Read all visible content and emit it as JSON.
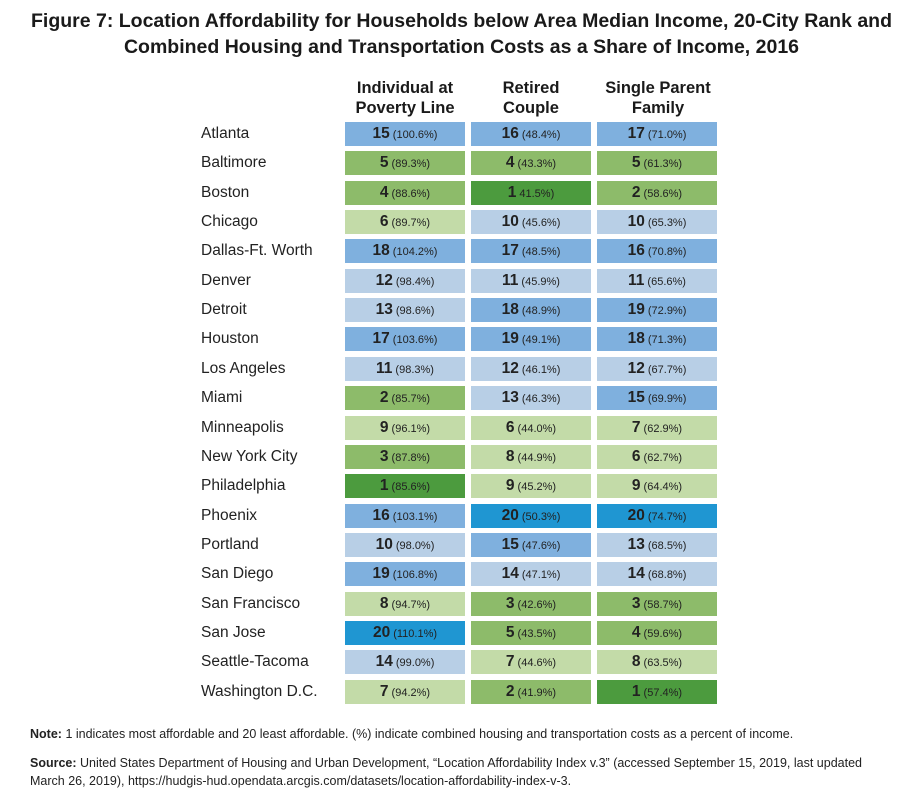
{
  "title_line1": "Figure 7: Location Affordability for Households below Area Median Income, 20-City Rank and",
  "title_line2": "Combined Housing and Transportation Costs as a Share of Income, 2016",
  "colors": {
    "shade_1": "#4c9b3e",
    "shade_2": "#8dbb6a",
    "shade_3": "#c3dba8",
    "shade_4": "#b8cfe6",
    "shade_5": "#7fb0de",
    "shade_6": "#1f96d2"
  },
  "chart_data": {
    "type": "table",
    "columns": [
      {
        "line1": "Individual at",
        "line2": "Poverty Line"
      },
      {
        "line1": "Retired",
        "line2": "Couple"
      },
      {
        "line1": "Single Parent",
        "line2": "Family"
      }
    ],
    "rows": [
      {
        "city": "Atlanta",
        "cells": [
          {
            "rank": "15",
            "pct": "(100.6%)"
          },
          {
            "rank": "16",
            "pct": "(48.4%)"
          },
          {
            "rank": "17",
            "pct": "(71.0%)"
          }
        ]
      },
      {
        "city": "Baltimore",
        "cells": [
          {
            "rank": "5",
            "pct": "(89.3%)"
          },
          {
            "rank": "4",
            "pct": "(43.3%)"
          },
          {
            "rank": "5",
            "pct": "(61.3%)"
          }
        ]
      },
      {
        "city": "Boston",
        "cells": [
          {
            "rank": "4",
            "pct": "(88.6%)"
          },
          {
            "rank": "1",
            "pct": "41.5%)"
          },
          {
            "rank": "2",
            "pct": "(58.6%)"
          }
        ]
      },
      {
        "city": "Chicago",
        "cells": [
          {
            "rank": "6",
            "pct": "(89.7%)"
          },
          {
            "rank": "10",
            "pct": "(45.6%)"
          },
          {
            "rank": "10",
            "pct": "(65.3%)"
          }
        ]
      },
      {
        "city": "Dallas-Ft. Worth",
        "cells": [
          {
            "rank": "18",
            "pct": "(104.2%)"
          },
          {
            "rank": "17",
            "pct": "(48.5%)"
          },
          {
            "rank": "16",
            "pct": "(70.8%)"
          }
        ]
      },
      {
        "city": "Denver",
        "cells": [
          {
            "rank": "12",
            "pct": "(98.4%)"
          },
          {
            "rank": "11",
            "pct": "(45.9%)"
          },
          {
            "rank": "11",
            "pct": "(65.6%)"
          }
        ]
      },
      {
        "city": "Detroit",
        "cells": [
          {
            "rank": "13",
            "pct": "(98.6%)"
          },
          {
            "rank": "18",
            "pct": "(48.9%)"
          },
          {
            "rank": "19",
            "pct": "(72.9%)"
          }
        ]
      },
      {
        "city": "Houston",
        "cells": [
          {
            "rank": "17",
            "pct": "(103.6%)"
          },
          {
            "rank": "19",
            "pct": "(49.1%)"
          },
          {
            "rank": "18",
            "pct": "(71.3%)"
          }
        ]
      },
      {
        "city": "Los Angeles",
        "cells": [
          {
            "rank": "11",
            "pct": "(98.3%)"
          },
          {
            "rank": "12",
            "pct": "(46.1%)"
          },
          {
            "rank": "12",
            "pct": "(67.7%)"
          }
        ]
      },
      {
        "city": "Miami",
        "cells": [
          {
            "rank": "2",
            "pct": "(85.7%)"
          },
          {
            "rank": "13",
            "pct": "(46.3%)"
          },
          {
            "rank": "15",
            "pct": "(69.9%)"
          }
        ]
      },
      {
        "city": "Minneapolis",
        "cells": [
          {
            "rank": "9",
            "pct": "(96.1%)"
          },
          {
            "rank": "6",
            "pct": "(44.0%)"
          },
          {
            "rank": "7",
            "pct": "(62.9%)"
          }
        ]
      },
      {
        "city": "New York City",
        "cells": [
          {
            "rank": "3",
            "pct": "(87.8%)"
          },
          {
            "rank": "8",
            "pct": "(44.9%)"
          },
          {
            "rank": "6",
            "pct": "(62.7%)"
          }
        ]
      },
      {
        "city": "Philadelphia",
        "cells": [
          {
            "rank": "1",
            "pct": "(85.6%)"
          },
          {
            "rank": "9",
            "pct": "(45.2%)"
          },
          {
            "rank": "9",
            "pct": "(64.4%)"
          }
        ]
      },
      {
        "city": "Phoenix",
        "cells": [
          {
            "rank": "16",
            "pct": "(103.1%)"
          },
          {
            "rank": "20",
            "pct": "(50.3%)"
          },
          {
            "rank": "20",
            "pct": "(74.7%)"
          }
        ]
      },
      {
        "city": "Portland",
        "cells": [
          {
            "rank": "10",
            "pct": "(98.0%)"
          },
          {
            "rank": "15",
            "pct": "(47.6%)"
          },
          {
            "rank": "13",
            "pct": "(68.5%)"
          }
        ]
      },
      {
        "city": "San Diego",
        "cells": [
          {
            "rank": "19",
            "pct": "(106.8%)"
          },
          {
            "rank": "14",
            "pct": "(47.1%)"
          },
          {
            "rank": "14",
            "pct": "(68.8%)"
          }
        ]
      },
      {
        "city": "San Francisco",
        "cells": [
          {
            "rank": "8",
            "pct": "(94.7%)"
          },
          {
            "rank": "3",
            "pct": "(42.6%)"
          },
          {
            "rank": "3",
            "pct": "(58.7%)"
          }
        ]
      },
      {
        "city": "San Jose",
        "cells": [
          {
            "rank": "20",
            "pct": "(110.1%)"
          },
          {
            "rank": "5",
            "pct": "(43.5%)"
          },
          {
            "rank": "4",
            "pct": "(59.6%)"
          }
        ]
      },
      {
        "city": "Seattle-Tacoma",
        "cells": [
          {
            "rank": "14",
            "pct": "(99.0%)"
          },
          {
            "rank": "7",
            "pct": "(44.6%)"
          },
          {
            "rank": "8",
            "pct": "(63.5%)"
          }
        ]
      },
      {
        "city": "Washington D.C.",
        "cells": [
          {
            "rank": "7",
            "pct": "(94.2%)"
          },
          {
            "rank": "2",
            "pct": "(41.9%)"
          },
          {
            "rank": "1",
            "pct": "(57.4%)"
          }
        ]
      }
    ]
  },
  "note": {
    "label": "Note:",
    "text": "1 indicates most affordable and 20 least affordable. (%) indicate combined housing and transportation costs as a percent of income."
  },
  "source": {
    "label": "Source:",
    "text": "United States Department of Housing and Urban Development, “Location Affordability Index v.3” (accessed September 15, 2019, last updated March 26, 2019), https://hudgis-hud.opendata.arcgis.com/datasets/location-affordability-index-v-3."
  }
}
